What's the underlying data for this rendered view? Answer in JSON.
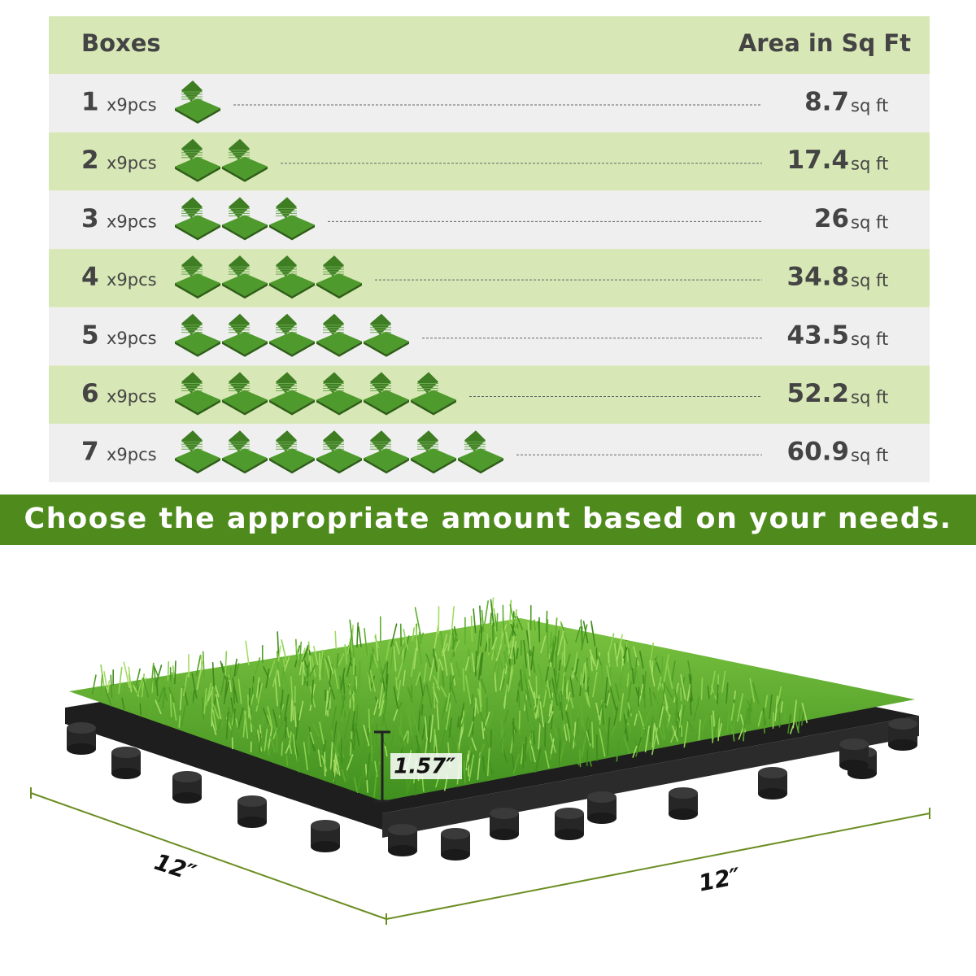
{
  "table": {
    "header": {
      "boxes": "Boxes",
      "area": "Area in Sq Ft"
    },
    "rows": [
      {
        "boxes": 1,
        "pieces": "x9pcs",
        "area": 8.7,
        "unit": "sq ft"
      },
      {
        "boxes": 2,
        "pieces": "x9pcs",
        "area": 17.4,
        "unit": "sq ft"
      },
      {
        "boxes": 3,
        "pieces": "x9pcs",
        "area": 26,
        "unit": "sq ft"
      },
      {
        "boxes": 4,
        "pieces": "x9pcs",
        "area": 34.8,
        "unit": "sq ft"
      },
      {
        "boxes": 5,
        "pieces": "x9pcs",
        "area": 43.5,
        "unit": "sq ft"
      },
      {
        "boxes": 6,
        "pieces": "x9pcs",
        "area": 52.2,
        "unit": "sq ft"
      },
      {
        "boxes": 7,
        "pieces": "x9pcs",
        "area": 60.9,
        "unit": "sq ft"
      }
    ]
  },
  "banner": "Choose the appropriate amount based on your needs.",
  "dimensions": {
    "height": "1.57″",
    "width": "12″",
    "length": "12″"
  }
}
